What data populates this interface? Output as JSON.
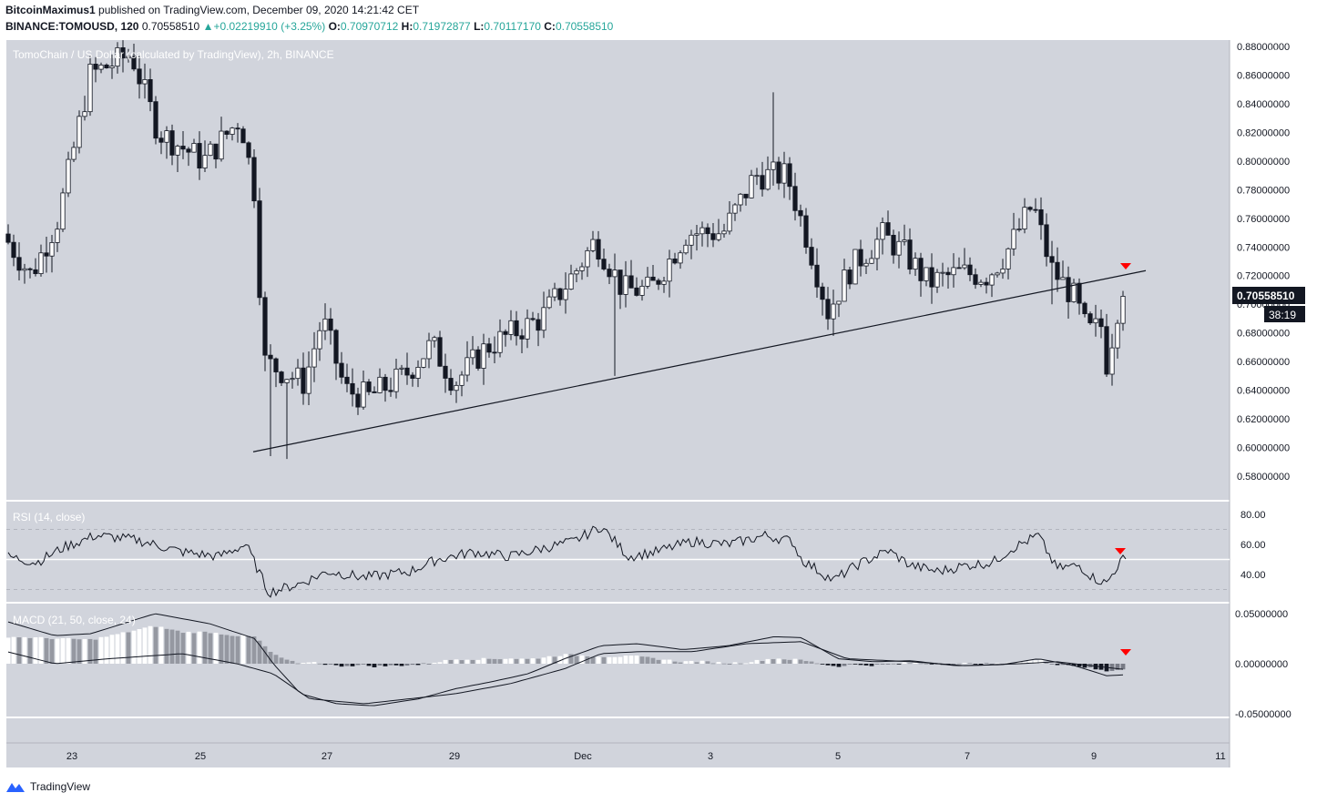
{
  "header": {
    "author": "BitcoinMaximus1",
    "published_text": "published on TradingView.com, December 09, 2020 14:21:42 CET",
    "symbol": "BINANCE:TOMOUSD, 120",
    "last": "0.70558510",
    "change": "+0.02219910 (+3.25%)",
    "o_label": "O:",
    "o_val": "0.70970712",
    "h_label": "H:",
    "h_val": "0.71972877",
    "l_label": "L:",
    "l_val": "0.70117170",
    "c_label": "C:",
    "c_val": "0.70558510"
  },
  "price_pane": {
    "legend": "TomoChain / US Dollar (calculated by TradingView), 2h, BINANCE",
    "currency": "USD",
    "y_ticks": [
      "0.58000000",
      "0.60000000",
      "0.62000000",
      "0.64000000",
      "0.66000000",
      "0.68000000",
      "0.70000000",
      "0.72000000",
      "0.74000000",
      "0.76000000",
      "0.78000000",
      "0.80000000",
      "0.82000000",
      "0.84000000",
      "0.86000000",
      "0.88000000"
    ],
    "last_price_label": "0.70558510",
    "countdown": "38:19"
  },
  "rsi_pane": {
    "legend": "RSI (14, close)",
    "y_ticks": [
      "40.00",
      "60.00",
      "80.00"
    ]
  },
  "macd_pane": {
    "legend": "MACD (21, 50, close, 24)",
    "y_ticks": [
      "-0.05000000",
      "0.00000000",
      "0.05000000"
    ]
  },
  "x_axis": {
    "labels": [
      "23",
      "25",
      "27",
      "29",
      "Dec",
      "3",
      "5",
      "7",
      "9",
      "11"
    ]
  },
  "footer": {
    "brand": "TradingView"
  },
  "colors": {
    "background": "#d1d4dc",
    "candle_up": "#ffffff",
    "candle_down": "#131722",
    "marker": "#ff0000"
  },
  "chart_data": {
    "type": "candlestick",
    "series": "TOMOUSD 2h",
    "ylim": [
      0.57,
      0.89
    ],
    "key_points": [
      {
        "date": "Nov 22",
        "close": 0.75
      },
      {
        "date": "Nov 24",
        "high": 0.88
      },
      {
        "date": "Nov 26",
        "low": 0.594
      },
      {
        "date": "Nov 27",
        "close": 0.615
      },
      {
        "date": "Dec 1",
        "close": 0.71
      },
      {
        "date": "Dec 4",
        "high": 0.848
      },
      {
        "date": "Dec 5",
        "low": 0.68
      },
      {
        "date": "Dec 8",
        "high": 0.78
      },
      {
        "date": "Dec 9",
        "low": 0.637
      },
      {
        "date": "Dec 9",
        "close": 0.7055851
      }
    ],
    "trendline": {
      "from": {
        "date": "Nov 25",
        "value": 0.597
      },
      "to": {
        "date": "Dec 9",
        "value": 0.723
      }
    },
    "rsi": {
      "ylim": [
        20,
        90
      ],
      "bands": [
        30,
        50,
        70
      ]
    },
    "macd": {
      "ylim": [
        -0.065,
        0.065
      ]
    }
  }
}
